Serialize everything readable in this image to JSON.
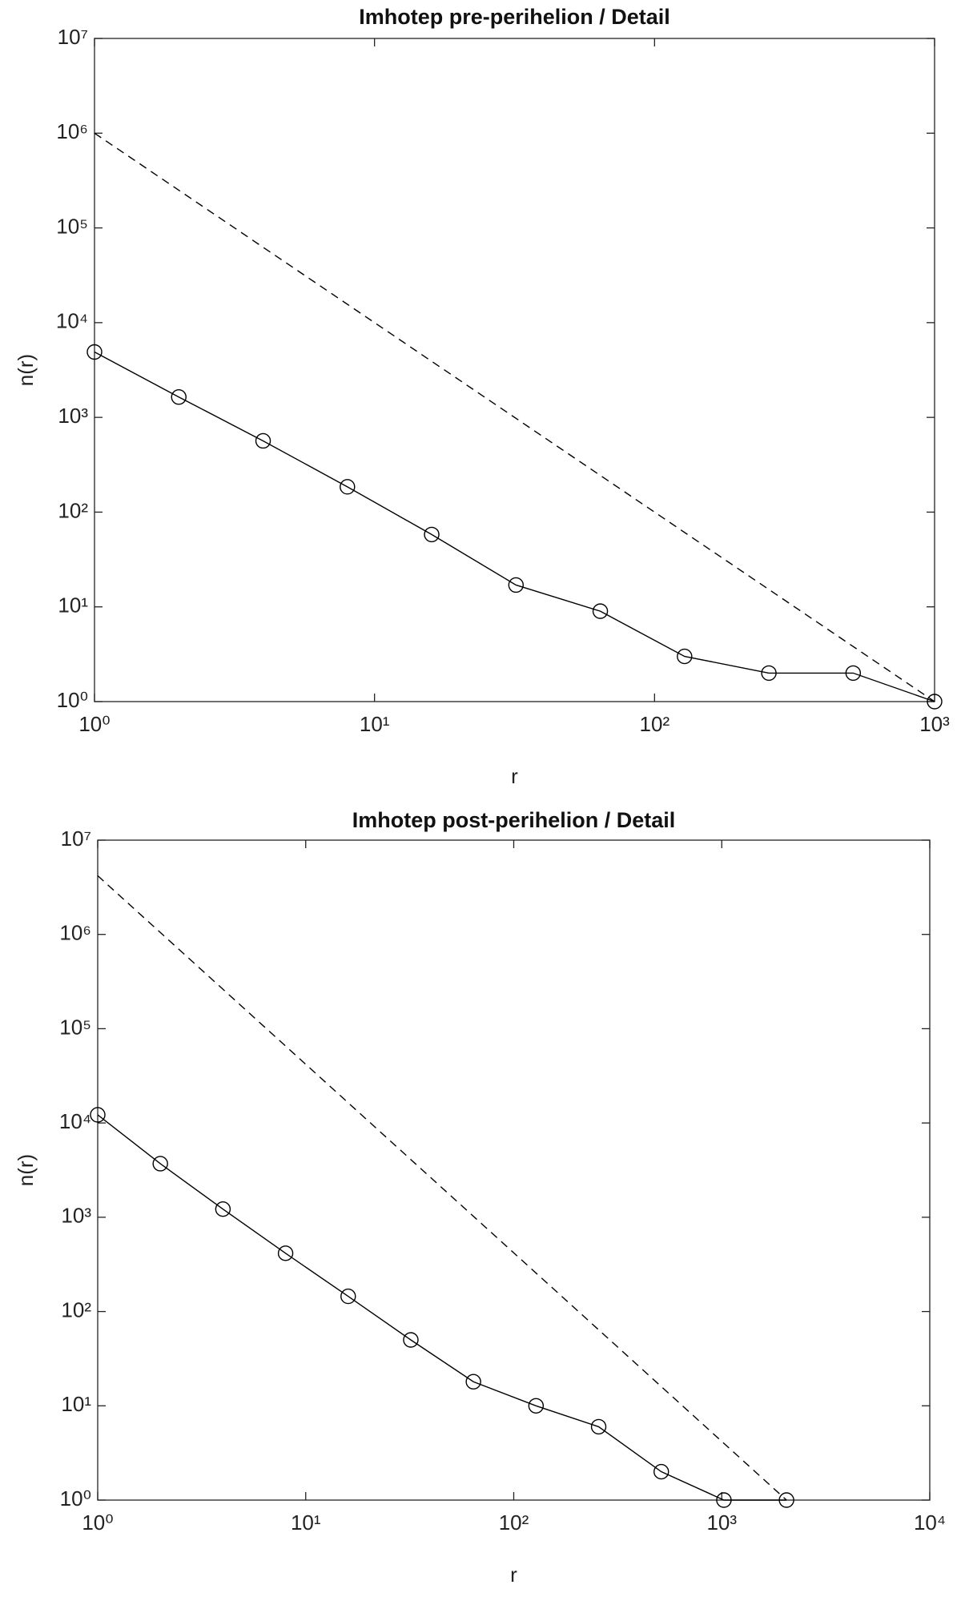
{
  "chart_data": [
    {
      "type": "line",
      "title": "Imhotep pre-perihelion / Detail",
      "x_label": "r",
      "y_label": "n(r)",
      "xscale": "log",
      "yscale": "log",
      "xlim": [
        1,
        1000
      ],
      "ylim": [
        1,
        10000000
      ],
      "xticks": [
        {
          "value": 1,
          "label": "10⁰"
        },
        {
          "value": 10,
          "label": "10¹"
        },
        {
          "value": 100,
          "label": "10²"
        },
        {
          "value": 1000,
          "label": "10³"
        }
      ],
      "yticks": [
        {
          "value": 1,
          "label": "10⁰"
        },
        {
          "value": 10,
          "label": "10¹"
        },
        {
          "value": 100,
          "label": "10²"
        },
        {
          "value": 1000,
          "label": "10³"
        },
        {
          "value": 10000,
          "label": "10⁴"
        },
        {
          "value": 100000,
          "label": "10⁵"
        },
        {
          "value": 1000000,
          "label": "10⁶"
        },
        {
          "value": 10000000,
          "label": "10⁷"
        }
      ],
      "series": [
        {
          "color": "#000000",
          "marker": "o",
          "linestyle": "solid",
          "x": [
            1,
            2,
            4,
            8,
            16,
            32,
            64,
            128,
            256,
            512,
            1000
          ],
          "values": [
            4900,
            1640,
            565,
            185,
            58,
            17,
            9,
            3,
            2,
            2,
            1
          ]
        },
        {
          "color": "#000000",
          "marker": "none",
          "linestyle": "dashed",
          "x": [
            1,
            1000
          ],
          "values": [
            1000000,
            1
          ]
        }
      ]
    },
    {
      "type": "line",
      "title": "Imhotep post-perihelion / Detail",
      "x_label": "r",
      "y_label": "n(r)",
      "xscale": "log",
      "yscale": "log",
      "xlim": [
        1,
        10000
      ],
      "ylim": [
        1,
        10000000
      ],
      "xticks": [
        {
          "value": 1,
          "label": "10⁰"
        },
        {
          "value": 10,
          "label": "10¹"
        },
        {
          "value": 100,
          "label": "10²"
        },
        {
          "value": 1000,
          "label": "10³"
        },
        {
          "value": 10000,
          "label": "10⁴"
        }
      ],
      "yticks": [
        {
          "value": 1,
          "label": "10⁰"
        },
        {
          "value": 10,
          "label": "10¹"
        },
        {
          "value": 100,
          "label": "10²"
        },
        {
          "value": 1000,
          "label": "10³"
        },
        {
          "value": 10000,
          "label": "10⁴"
        },
        {
          "value": 100000,
          "label": "10⁵"
        },
        {
          "value": 1000000,
          "label": "10⁶"
        },
        {
          "value": 10000000,
          "label": "10⁷"
        }
      ],
      "series": [
        {
          "color": "#000000",
          "marker": "o",
          "linestyle": "solid",
          "x": [
            1,
            2,
            4,
            8,
            16,
            32,
            64,
            128,
            256,
            512,
            1024,
            2048
          ],
          "values": [
            12200,
            3700,
            1220,
            415,
            145,
            50,
            18,
            10,
            6,
            2,
            1,
            1
          ]
        },
        {
          "color": "#000000",
          "marker": "none",
          "linestyle": "dashed",
          "x": [
            1,
            2048
          ],
          "values": [
            4194304,
            1
          ]
        }
      ]
    }
  ]
}
